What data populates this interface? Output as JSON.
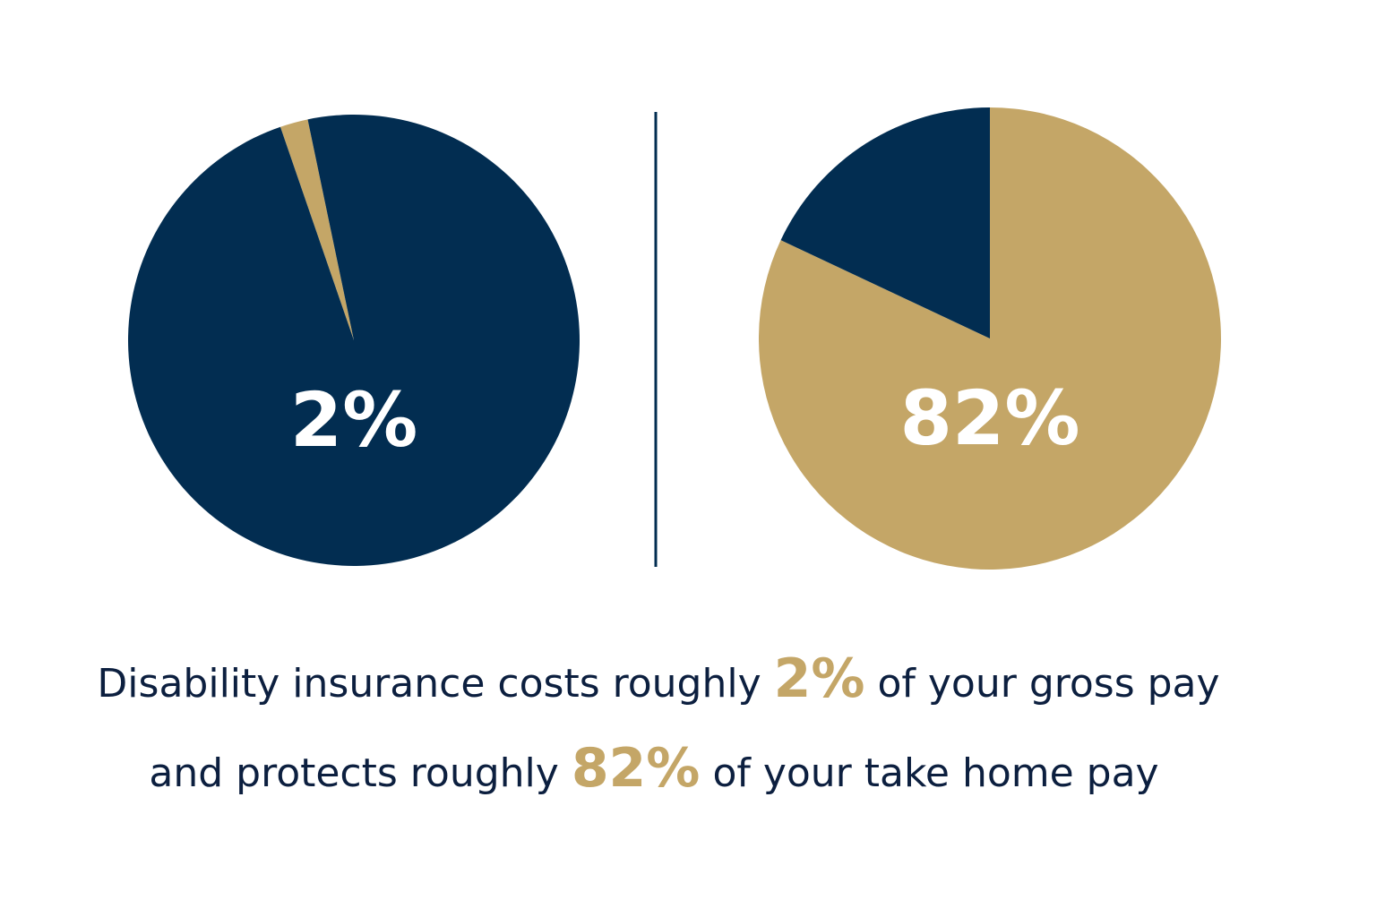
{
  "chart_data": [
    {
      "type": "pie",
      "values": [
        2,
        98
      ],
      "value_labels": [
        "2%",
        null
      ],
      "colors": [
        "#c4a667",
        "#022d51"
      ]
    },
    {
      "type": "pie",
      "values": [
        82,
        18
      ],
      "value_labels": [
        "82%",
        null
      ],
      "colors": [
        "#c4a667",
        "#022d51"
      ]
    }
  ],
  "caption": [
    [
      "Disability insurance costs roughly",
      "2%",
      "of your gross pay"
    ],
    [
      "and protects roughly",
      "82%",
      "of your take home pay"
    ]
  ]
}
